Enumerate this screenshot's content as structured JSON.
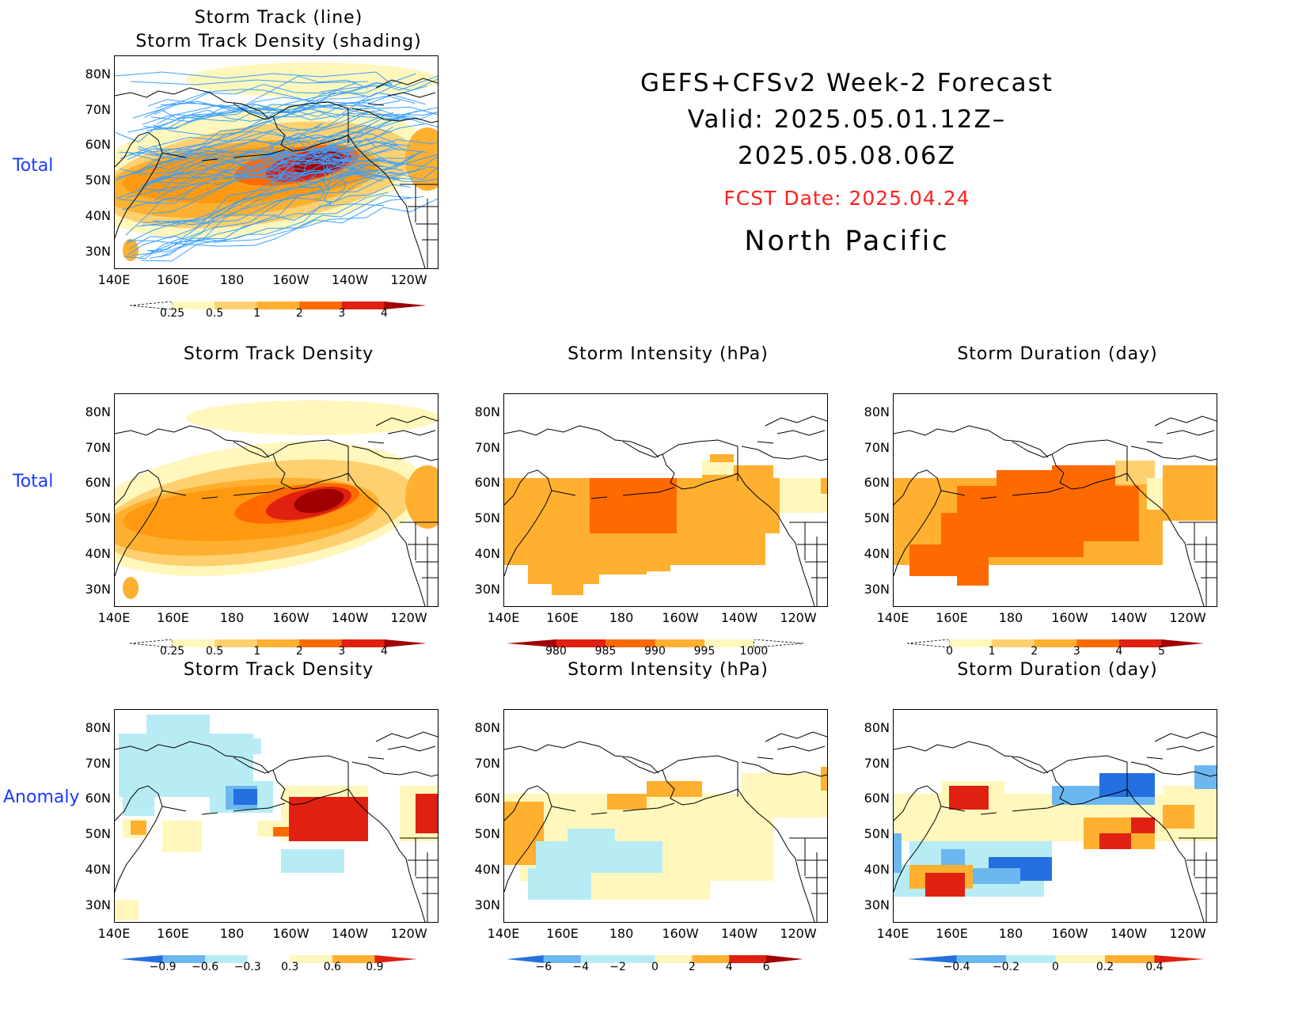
{
  "header": {
    "title_line1": "GEFS+CFSv2 Week-2 Forecast",
    "title_line2": "Valid: 2025.05.01.12Z–2025.05.08.06Z",
    "fcst_date": "FCST Date: 2025.04.24",
    "region": "North Pacific"
  },
  "row_labels": {
    "total_top": "Total",
    "total_mid": "Total",
    "anomaly": "Anomaly"
  },
  "axes": {
    "lat_labels": [
      "80N",
      "70N",
      "60N",
      "50N",
      "40N",
      "30N"
    ],
    "lon_labels": [
      "140E",
      "160E",
      "180",
      "160W",
      "140W",
      "120W"
    ]
  },
  "panels": {
    "track": {
      "title_line1": "Storm Track (line)",
      "title_line2": "Storm Track Density (shading)",
      "colorbar": [
        "0.25",
        "0.5",
        "1",
        "2",
        "3",
        "4"
      ]
    },
    "density_total": {
      "title": "Storm Track Density",
      "colorbar": [
        "0.25",
        "0.5",
        "1",
        "2",
        "3",
        "4"
      ]
    },
    "intensity_total": {
      "title": "Storm Intensity (hPa)",
      "colorbar": [
        "980",
        "985",
        "990",
        "995",
        "1000"
      ]
    },
    "duration_total": {
      "title": "Storm Duration (day)",
      "colorbar": [
        "0",
        "1",
        "2",
        "3",
        "4",
        "5"
      ]
    },
    "density_anom": {
      "title": "Storm Track Density",
      "colorbar": [
        "−0.9",
        "−0.6",
        "−0.3",
        "0.3",
        "0.6",
        "0.9"
      ]
    },
    "intensity_anom": {
      "title": "Storm Intensity (hPa)",
      "colorbar": [
        "−6",
        "−4",
        "−2",
        "0",
        "2",
        "4",
        "6"
      ]
    },
    "duration_anom": {
      "title": "Storm Duration (day)",
      "colorbar": [
        "−0.4",
        "−0.2",
        "0",
        "0.2",
        "0.4"
      ]
    }
  },
  "colors": {
    "warm": [
      "#fff7bb",
      "#ffd070",
      "#ffb030",
      "#ff9a10",
      "#ff6a00",
      "#e02010",
      "#a00000"
    ],
    "cool": [
      "#b7ecf5",
      "#6cb7f0",
      "#2470e0"
    ],
    "track_lines": "#3aa0ff"
  }
}
